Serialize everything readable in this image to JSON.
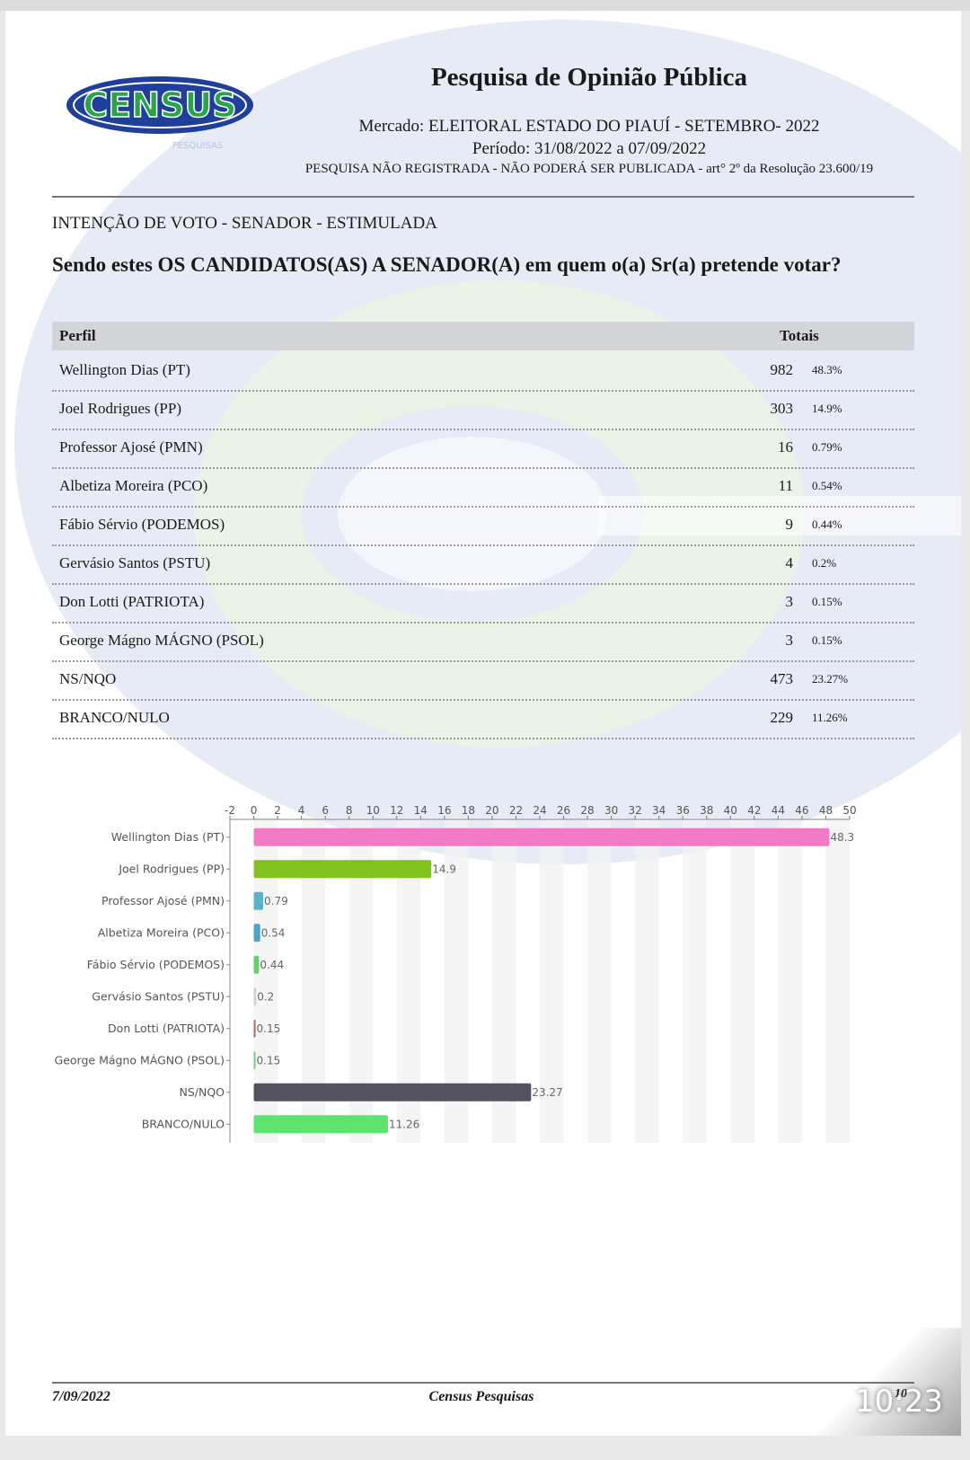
{
  "header": {
    "title": "Pesquisa de Opinião Pública",
    "market": "Mercado: ELEITORAL ESTADO DO PIAUÍ - SETEMBRO- 2022",
    "period": "Período: 31/08/2022 a 07/09/2022",
    "notice": "PESQUISA NÃO REGISTRADA - NÃO PODERÁ SER PUBLICADA - art° 2º da Resolução 23.600/19",
    "logo_text": "CENSUS",
    "logo_sub": "PESQUISAS"
  },
  "section_title": "INTENÇÃO DE VOTO - SENADOR - ESTIMULADA",
  "question": "Sendo estes OS CANDIDATOS(AS) A SENADOR(A) em quem o(a) Sr(a) pretende votar?",
  "table": {
    "col_profile": "Perfil",
    "col_totals": "Totais",
    "rows": [
      {
        "name": "Wellington Dias (PT)",
        "count": "982",
        "pct": "48.3%"
      },
      {
        "name": "Joel Rodrigues (PP)",
        "count": "303",
        "pct": "14.9%"
      },
      {
        "name": "Professor Ajosé (PMN)",
        "count": "16",
        "pct": "0.79%"
      },
      {
        "name": "Albetiza Moreira (PCO)",
        "count": "11",
        "pct": "0.54%"
      },
      {
        "name": "Fábio Sérvio (PODEMOS)",
        "count": "9",
        "pct": "0.44%"
      },
      {
        "name": "Gervásio Santos (PSTU)",
        "count": "4",
        "pct": "0.2%"
      },
      {
        "name": "Don Lotti (PATRIOTA)",
        "count": "3",
        "pct": "0.15%"
      },
      {
        "name": "George Mágno MÁGNO (PSOL)",
        "count": "3",
        "pct": "0.15%"
      },
      {
        "name": "NS/NQO",
        "count": "473",
        "pct": "23.27%"
      },
      {
        "name": "BRANCO/NULO",
        "count": "229",
        "pct": "11.26%"
      }
    ]
  },
  "chart_data": {
    "type": "bar",
    "orientation": "horizontal",
    "categories": [
      "Wellington Dias (PT)",
      "Joel Rodrigues (PP)",
      "Professor Ajosé (PMN)",
      "Albetiza Moreira (PCO)",
      "Fábio Sérvio (PODEMOS)",
      "Gervásio Santos (PSTU)",
      "Don Lotti (PATRIOTA)",
      "George Mágno MÁGNO (PSOL)",
      "NS/NQO",
      "BRANCO/NULO"
    ],
    "values": [
      48.3,
      14.9,
      0.79,
      0.54,
      0.44,
      0.2,
      0.15,
      0.15,
      23.27,
      11.26
    ],
    "data_labels": [
      "48.3",
      "14.9",
      "0.79",
      "0.54",
      "0.44",
      "0.2",
      "0.15",
      "0.15",
      "23.27",
      "11.26"
    ],
    "colors": [
      "#f47ac8",
      "#7fc31c",
      "#5bb3c6",
      "#4aa7c9",
      "#5fd36a",
      "#cfcfcf",
      "#b06a5a",
      "#6fd27a",
      "#55525e",
      "#5ee36e"
    ],
    "xlim": [
      -2,
      50
    ],
    "xticks": [
      -2,
      0,
      2,
      4,
      6,
      8,
      10,
      12,
      14,
      16,
      18,
      20,
      22,
      24,
      26,
      28,
      30,
      32,
      34,
      36,
      38,
      40,
      42,
      44,
      46,
      48,
      50
    ],
    "grid": true,
    "title": "",
    "xlabel": "",
    "ylabel": ""
  },
  "footer": {
    "date": "7/09/2022",
    "center": "Census Pesquisas",
    "page": "10"
  },
  "status": {
    "clock": "10:23"
  },
  "colors": {
    "logo_blue": "#1f3f9a",
    "logo_green": "#2aa34a",
    "watermark_blue": "#dfe6f4",
    "watermark_green": "#e2f1e2"
  }
}
